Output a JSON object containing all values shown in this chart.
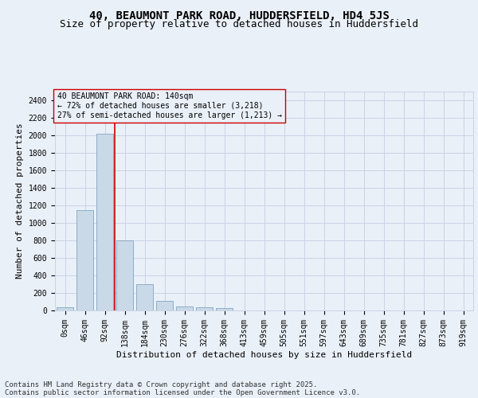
{
  "title_line1": "40, BEAUMONT PARK ROAD, HUDDERSFIELD, HD4 5JS",
  "title_line2": "Size of property relative to detached houses in Huddersfield",
  "xlabel": "Distribution of detached houses by size in Huddersfield",
  "ylabel": "Number of detached properties",
  "bar_color": "#c9d9e8",
  "bar_edge_color": "#7099b8",
  "grid_color": "#c0c8d8",
  "annotation_box_color": "#cc0000",
  "property_line_color": "#cc0000",
  "categories": [
    "0sqm",
    "46sqm",
    "92sqm",
    "138sqm",
    "184sqm",
    "230sqm",
    "276sqm",
    "322sqm",
    "368sqm",
    "413sqm",
    "459sqm",
    "505sqm",
    "551sqm",
    "597sqm",
    "643sqm",
    "689sqm",
    "735sqm",
    "781sqm",
    "827sqm",
    "873sqm",
    "919sqm"
  ],
  "values": [
    35,
    1150,
    2020,
    800,
    300,
    105,
    50,
    40,
    25,
    0,
    0,
    0,
    0,
    0,
    0,
    0,
    0,
    0,
    0,
    0,
    0
  ],
  "ylim": [
    0,
    2500
  ],
  "yticks": [
    0,
    200,
    400,
    600,
    800,
    1000,
    1200,
    1400,
    1600,
    1800,
    2000,
    2200,
    2400
  ],
  "property_bin_index": 3,
  "annotation_text_line1": "40 BEAUMONT PARK ROAD: 140sqm",
  "annotation_text_line2": "← 72% of detached houses are smaller (3,218)",
  "annotation_text_line3": "27% of semi-detached houses are larger (1,213) →",
  "footnote_line1": "Contains HM Land Registry data © Crown copyright and database right 2025.",
  "footnote_line2": "Contains public sector information licensed under the Open Government Licence v3.0.",
  "background_color": "#eaf0f8",
  "plot_bg_color": "#eaf0f8",
  "grid_color_hex": "#c8d4e4",
  "title_fontsize": 10,
  "subtitle_fontsize": 9,
  "axis_label_fontsize": 8,
  "tick_fontsize": 7,
  "annotation_fontsize": 7,
  "footnote_fontsize": 6.5
}
